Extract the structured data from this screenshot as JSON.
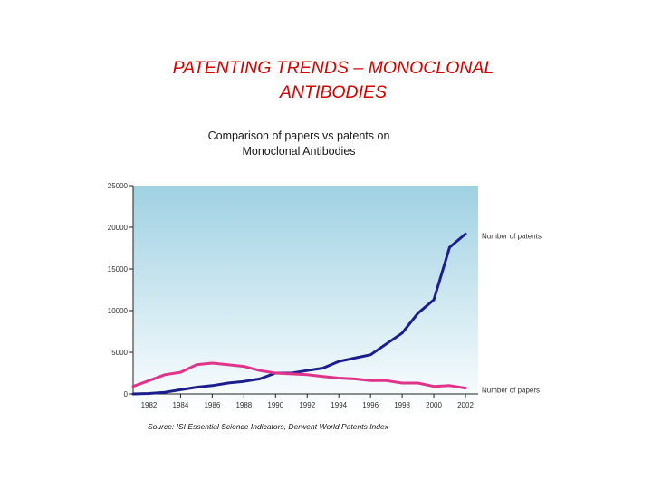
{
  "slide": {
    "title_line1": "PATENTING TRENDS  – MONOCLONAL",
    "title_line2": "ANTIBODIES"
  },
  "chart_heading": {
    "line1": "Comparison of papers vs patents on",
    "line2": "Monoclonal Antibodies"
  },
  "source": "Source: ISI Essential Science Indicators, Derwent World Patents Index",
  "colors": {
    "patents": "#1c1e8e",
    "papers": "#e0338a",
    "background_top": "#9fd1e3",
    "background_bottom": "#ffffff",
    "title": "#d50000"
  },
  "chart_data": {
    "type": "line",
    "title": "Comparison of papers vs patents on Monoclonal Antibodies",
    "xlabel": "",
    "ylabel": "",
    "x": [
      1981,
      1982,
      1983,
      1984,
      1985,
      1986,
      1987,
      1988,
      1989,
      1990,
      1991,
      1992,
      1993,
      1994,
      1995,
      1996,
      1997,
      1998,
      1999,
      2000,
      2001,
      2002
    ],
    "x_tick_labels": [
      "1982",
      "1984",
      "1986",
      "1988",
      "1990",
      "1992",
      "1994",
      "1996",
      "1998",
      "2000",
      "2002"
    ],
    "x_ticks": [
      1982,
      1984,
      1986,
      1988,
      1990,
      1992,
      1994,
      1996,
      1998,
      2000,
      2002
    ],
    "y_tick_labels": [
      "0",
      "5000",
      "10000",
      "15000",
      "20000",
      "25000"
    ],
    "y_ticks": [
      0,
      5000,
      10000,
      15000,
      20000,
      25000
    ],
    "xlim": [
      1981,
      2002.8
    ],
    "ylim": [
      0,
      25000
    ],
    "grid": false,
    "legend": "inline-right",
    "series": [
      {
        "name": "Number of patents",
        "key": "patents",
        "values": [
          0,
          50,
          200,
          500,
          800,
          1000,
          1300,
          1500,
          1800,
          2500,
          2500,
          2800,
          3100,
          3900,
          4300,
          4700,
          6000,
          7300,
          9700,
          11300,
          17600,
          19200
        ]
      },
      {
        "name": "Number of papers",
        "key": "papers",
        "values": [
          900,
          1600,
          2300,
          2600,
          3500,
          3700,
          3500,
          3300,
          2800,
          2500,
          2400,
          2300,
          2100,
          1900,
          1800,
          1600,
          1600,
          1300,
          1300,
          900,
          1000,
          700
        ]
      }
    ]
  }
}
